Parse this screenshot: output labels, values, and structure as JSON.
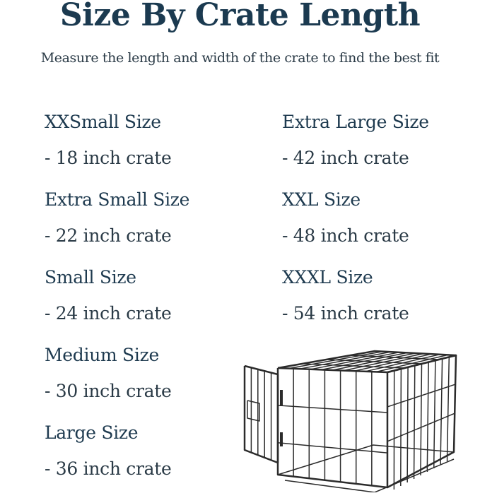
{
  "header": {
    "title": "Size By Crate Length",
    "subtitle": "Measure the length and width of the crate to find the best fit"
  },
  "sizes_left": [
    {
      "name": "XXSmall Size",
      "desc": "- 18 inch crate"
    },
    {
      "name": "Extra Small Size",
      "desc": "- 22 inch crate"
    },
    {
      "name": "Small Size",
      "desc": "- 24 inch crate"
    },
    {
      "name": "Medium Size",
      "desc": "- 30 inch crate"
    },
    {
      "name": "Large Size",
      "desc": "- 36 inch crate"
    }
  ],
  "sizes_right": [
    {
      "name": "Extra Large Size",
      "desc": "- 42 inch crate"
    },
    {
      "name": "XXL Size",
      "desc": "- 48 inch crate"
    },
    {
      "name": "XXXL Size",
      "desc": "- 54 inch crate"
    }
  ],
  "colors": {
    "text": "#1e3a4f",
    "crate": "#2b2b2b"
  },
  "illustration": "wire-dog-crate-icon"
}
